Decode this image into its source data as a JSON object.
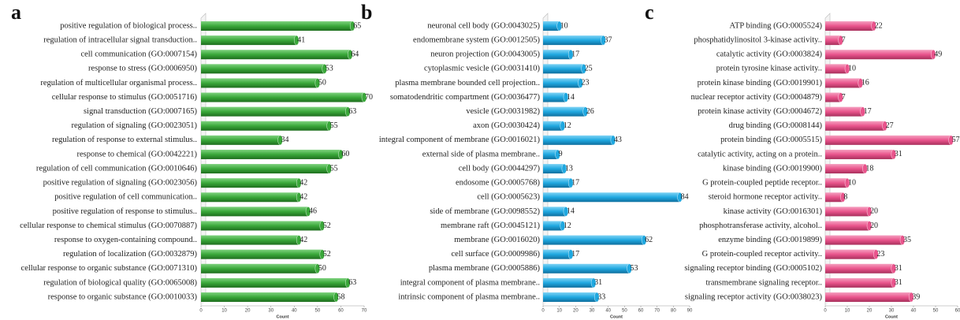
{
  "chart_data": [
    {
      "type": "bar",
      "orientation": "horizontal",
      "panel": "a",
      "color": "#3aa83a",
      "xlabel": "Count",
      "categories": [
        "positive regulation of biological process..",
        "regulation of intracellular signal transduction..",
        "cell communication (GO:0007154)",
        "response to stress (GO:0006950)",
        "regulation of multicellular organismal process..",
        "cellular response to stimulus (GO:0051716)",
        "signal transduction (GO:0007165)",
        "regulation of signaling (GO:0023051)",
        "regulation of response to external stimulus..",
        "response to chemical (GO:0042221)",
        "regulation of cell communication (GO:0010646)",
        "positive regulation of signaling (GO:0023056)",
        "positive regulation of cell communication..",
        "positive regulation of response to stimulus..",
        "cellular response to chemical stimulus (GO:0070887)",
        "response to oxygen-containing compound..",
        "regulation of localization (GO:0032879)",
        "cellular response to organic substance (GO:0071310)",
        "regulation of biological quality (GO:0065008)",
        "response to organic substance (GO:0010033)"
      ],
      "values": [
        65,
        41,
        64,
        53,
        50,
        70,
        63,
        55,
        34,
        60,
        55,
        42,
        42,
        46,
        52,
        42,
        52,
        50,
        63,
        58
      ],
      "xlim": [
        0,
        70
      ],
      "xticks": [
        0,
        10,
        20,
        30,
        40,
        50,
        60,
        70
      ]
    },
    {
      "type": "bar",
      "orientation": "horizontal",
      "panel": "b",
      "color": "#1fa8e0",
      "xlabel": "Count",
      "categories": [
        "neuronal cell body (GO:0043025)",
        "endomembrane system (GO:0012505)",
        "neuron projection (GO:0043005)",
        "cytoplasmic vesicle (GO:0031410)",
        "plasma membrane bounded cell projection..",
        "somatodendritic compartment (GO:0036477)",
        "vesicle (GO:0031982)",
        "axon (GO:0030424)",
        "integral component of membrane (GO:0016021)",
        "external side of plasma membrane..",
        "cell body (GO:0044297)",
        "endosome (GO:0005768)",
        "cell (GO:0005623)",
        "side of membrane (GO:0098552)",
        "membrane raft (GO:0045121)",
        "membrane (GO:0016020)",
        "cell surface (GO:0009986)",
        "plasma membrane (GO:0005886)",
        "integral component of plasma membrane..",
        "intrinsic component of plasma membrane.."
      ],
      "values": [
        10,
        37,
        17,
        25,
        23,
        14,
        26,
        12,
        43,
        9,
        13,
        17,
        84,
        14,
        12,
        62,
        17,
        53,
        31,
        33
      ],
      "xlim": [
        0,
        90
      ],
      "xticks": [
        0,
        10,
        20,
        30,
        40,
        50,
        60,
        70,
        80,
        90
      ]
    },
    {
      "type": "bar",
      "orientation": "horizontal",
      "panel": "c",
      "color": "#e9548c",
      "xlabel": "Count",
      "categories": [
        "ATP binding (GO:0005524)",
        "phosphatidylinositol 3-kinase activity..",
        "catalytic activity (GO:0003824)",
        "protein tyrosine kinase activity..",
        "protein kinase binding (GO:0019901)",
        "nuclear receptor activity (GO:0004879)",
        "protein kinase activity (GO:0004672)",
        "drug binding (GO:0008144)",
        "protein binding (GO:0005515)",
        "catalytic activity, acting on a protein..",
        "kinase binding (GO:0019900)",
        "G protein-coupled peptide receptor..",
        "steroid hormone receptor activity..",
        "kinase activity (GO:0016301)",
        "phosphotransferase activity, alcohol..",
        "enzyme binding (GO:0019899)",
        "G protein-coupled receptor activity..",
        "signaling receptor binding (GO:0005102)",
        "transmembrane signaling receptor..",
        "signaling receptor activity (GO:0038023)"
      ],
      "values": [
        22,
        7,
        49,
        10,
        16,
        7,
        17,
        27,
        57,
        31,
        18,
        10,
        8,
        20,
        20,
        35,
        23,
        31,
        31,
        39
      ],
      "xlim": [
        0,
        60
      ],
      "xticks": [
        0,
        10,
        20,
        30,
        40,
        50,
        60
      ]
    }
  ]
}
